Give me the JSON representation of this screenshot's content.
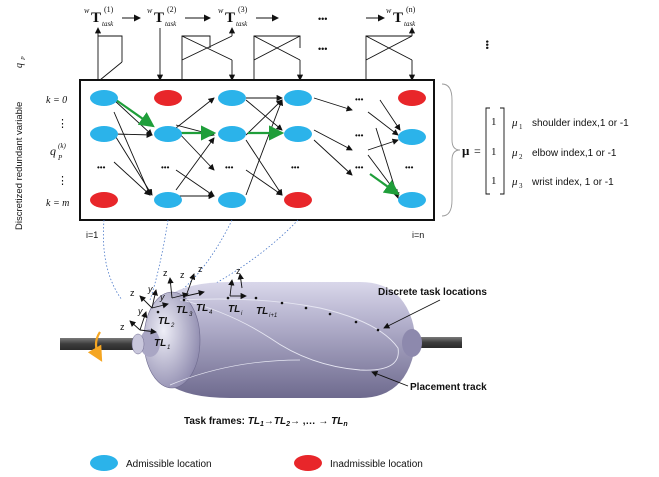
{
  "task_sequence": {
    "frames": [
      {
        "sup": "w",
        "main": "T",
        "sub": "task",
        "idx": "(1)"
      },
      {
        "sup": "w",
        "main": "T",
        "sub": "task",
        "idx": "(2)"
      },
      {
        "sup": "w",
        "main": "T",
        "sub": "task",
        "idx": "(3)"
      },
      {
        "sup": "w",
        "main": "T",
        "sub": "task",
        "idx": "(n)"
      }
    ],
    "ellipsis": "•••"
  },
  "grid": {
    "y_axis_label": "Discretized redundant variable",
    "y_axis_symbol": "q",
    "y_axis_symbol_sub": "P",
    "row_labels": {
      "top": "k = 0",
      "mid_main": "q",
      "mid_sub": "P",
      "mid_sup": "(k)",
      "bottom": "k = m",
      "dots": "⋮"
    },
    "col_labels": {
      "first": "i=1",
      "last": "i=n"
    },
    "ellipsis": "•••"
  },
  "mu": {
    "symbol": "μ",
    "equals": "=",
    "rows": [
      {
        "value": "1",
        "symbol": "μ",
        "sub": "1",
        "text": "shoulder index,1 or -1"
      },
      {
        "value": "1",
        "symbol": "μ",
        "sub": "2",
        "text": "elbow index,1 or -1"
      },
      {
        "value": "1",
        "symbol": "μ",
        "sub": "3",
        "text": "wrist index, 1 or -1"
      }
    ]
  },
  "vessel": {
    "axes": {
      "z": "z",
      "y": "y"
    },
    "task_locations": [
      {
        "main": "TL",
        "sub": "1"
      },
      {
        "main": "TL",
        "sub": "2"
      },
      {
        "main": "TL",
        "sub": "3"
      },
      {
        "main": "TL",
        "sub": "4"
      },
      {
        "main": "TL",
        "sub": "i"
      },
      {
        "main": "TL",
        "sub": "i+1"
      }
    ],
    "callouts": {
      "discrete": "Discrete task locations",
      "track": "Placement track"
    }
  },
  "caption": {
    "prefix": "Task frames: ",
    "tl1": "TL",
    "tl1_sub": "1",
    "arrow1": "→",
    "tl2": "TL",
    "tl2_sub": "2",
    "mid": "→ ,… →",
    "tln": "TL",
    "tln_sub": "n"
  },
  "legend": {
    "admissible": "Admissible location",
    "inadmissible": "Inadmissible location"
  },
  "colors": {
    "admissible": "#2bb3ea",
    "inadmissible": "#e8262a",
    "path_highlight": "#1f9e3a",
    "rotation_arrow": "#f5a623",
    "vessel_body": "#9a97b4",
    "shaft": "#4a4a4a",
    "link_dotted": "#4a78c8"
  }
}
